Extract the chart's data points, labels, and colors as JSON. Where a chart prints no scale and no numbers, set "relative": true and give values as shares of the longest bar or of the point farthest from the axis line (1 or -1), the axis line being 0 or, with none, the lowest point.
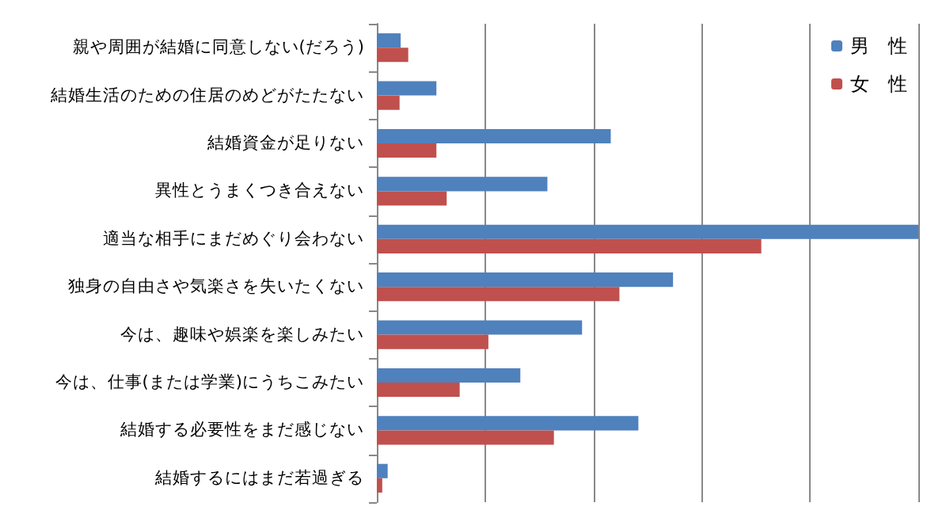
{
  "chart_data": {
    "type": "bar",
    "orientation": "horizontal",
    "relative": true,
    "grid": "x",
    "legend": "top right",
    "categories": [
      "親や周囲が結婚に同意しない(だろう)",
      "結婚生活のための住居のめどがたたない",
      "結婚資金が足りない",
      "異性とうまくつき合えない",
      "適当な相手にまだめぐり会わない",
      "独身の自由さや気楽さを失いたくない",
      "今は、趣味や娯楽を楽しみたい",
      "今は、仕事(または学業)にうちこみたい",
      "結婚する必要性をまだ感じない",
      "結婚するにはまだ若過ぎる"
    ],
    "series": [
      {
        "name": "男　性",
        "color": "#4f81bd",
        "values": [
          0.044,
          0.11,
          0.432,
          0.315,
          1,
          0.547,
          0.379,
          0.265,
          0.483,
          0.02
        ]
      },
      {
        "name": "女　性",
        "color": "#c0504d",
        "values": [
          0.058,
          0.042,
          0.11,
          0.129,
          0.71,
          0.448,
          0.206,
          0.153,
          0.327,
          0.01
        ]
      }
    ]
  }
}
